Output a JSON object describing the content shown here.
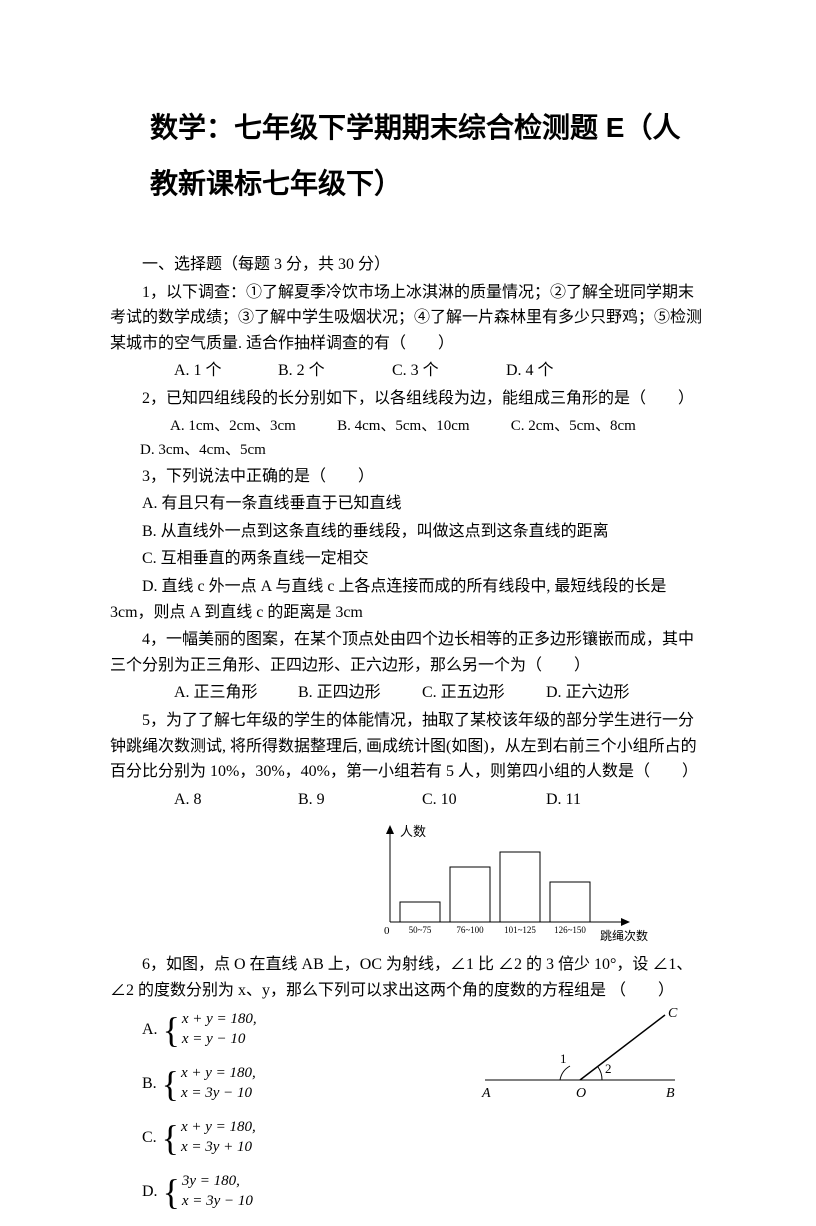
{
  "title": "数学：七年级下学期期末综合检测题 E（人教新课标七年级下）",
  "section1": {
    "header": "一、选择题（每题 3 分，共 30 分）",
    "q1": {
      "text": "1，以下调查：①了解夏季冷饮市场上冰淇淋的质量情况；②了解全班同学期末考试的数学成绩；③了解中学生吸烟状况；④了解一片森林里有多少只野鸡；⑤检测某城市的空气质量. 适合作抽样调查的有（　　）",
      "optA": "A. 1 个",
      "optB": "B. 2 个",
      "optC": "C. 3 个",
      "optD": "D. 4 个"
    },
    "q2": {
      "text": "2，已知四组线段的长分别如下，以各组线段为边，能组成三角形的是（　　）",
      "optA": "A. 1cm、2cm、3cm",
      "optB": "B. 4cm、5cm、10cm",
      "optC": "C. 2cm、5cm、8cm",
      "optD": "D. 3cm、4cm、5cm"
    },
    "q3": {
      "text": "3，下列说法中正确的是（　　）",
      "optA": "A. 有且只有一条直线垂直于已知直线",
      "optB": "B. 从直线外一点到这条直线的垂线段，叫做这点到这条直线的距离",
      "optC": "C. 互相垂直的两条直线一定相交",
      "optD": "D. 直线 c 外一点 A 与直线 c 上各点连接而成的所有线段中, 最短线段的长是 3cm，则点 A 到直线 c 的距离是 3cm"
    },
    "q4": {
      "text": "4，一幅美丽的图案，在某个顶点处由四个边长相等的正多边形镶嵌而成，其中三个分别为正三角形、正四边形、正六边形，那么另一个为（　　）",
      "optA": "A. 正三角形",
      "optB": "B. 正四边形",
      "optC": "C. 正五边形",
      "optD": "D. 正六边形"
    },
    "q5": {
      "text": "5，为了了解七年级的学生的体能情况，抽取了某校该年级的部分学生进行一分钟跳绳次数测试, 将所得数据整理后, 画成统计图(如图)，从左到右前三个小组所占的百分比分别为 10%，30%，40%，第一小组若有 5 人，则第四小组的人数是（　　）",
      "optA": "A. 8",
      "optB": "B. 9",
      "optC": "C. 10",
      "optD": "D. 11"
    },
    "q6": {
      "text": "6，如图，点 O 在直线 AB 上，OC 为射线，∠1 比 ∠2 的 3 倍少 10°，设 ∠1、∠2 的度数分别为 x、y，那么下列可以求出这两个角的度数的方程组是 （　　）",
      "eqA1": "x + y = 180,",
      "eqA2": "x = y − 10",
      "eqB1": "x + y = 180,",
      "eqB2": "x = 3y − 10",
      "eqC1": "x + y = 180,",
      "eqC2": "x = 3y + 10",
      "eqD1": "3y = 180,",
      "eqD2": "x = 3y − 10"
    },
    "chart": {
      "yLabel": "人数",
      "xLabel": "跳绳次数",
      "bins": [
        "50~75",
        "76~100",
        "101~125",
        "126~150"
      ],
      "heights": [
        20,
        55,
        70,
        40
      ],
      "barColor": "#ffffff",
      "borderColor": "#000000",
      "axisColor": "#000000"
    },
    "angleDiagram": {
      "labelA": "A",
      "labelB": "B",
      "labelO": "O",
      "labelC": "C",
      "angle1": "1",
      "angle2": "2"
    }
  }
}
